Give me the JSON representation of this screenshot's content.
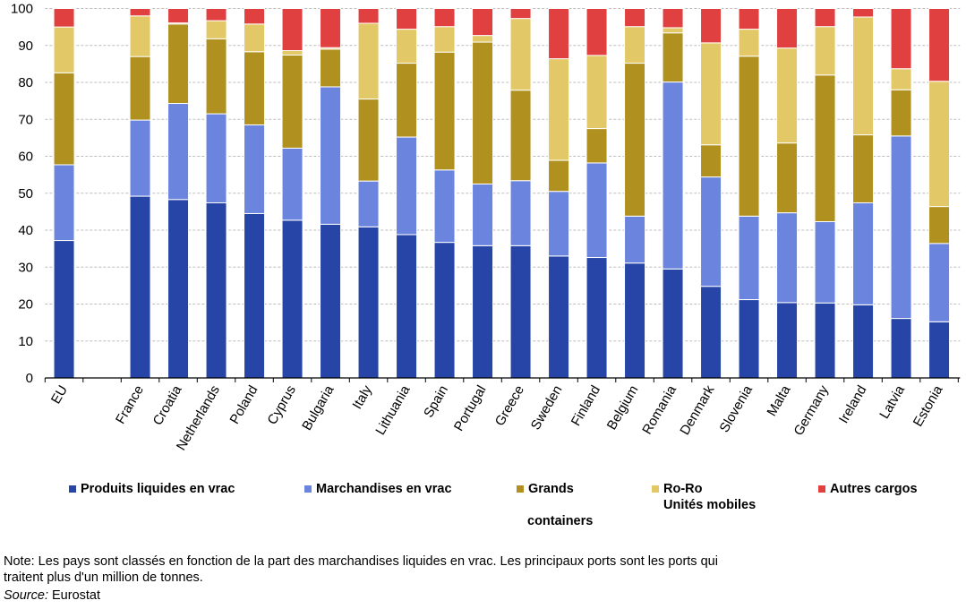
{
  "chart_data": {
    "type": "bar",
    "stacked": true,
    "title": "",
    "xlabel": "",
    "ylabel": "",
    "ylim": [
      0,
      100
    ],
    "yticks": [
      0,
      10,
      20,
      30,
      40,
      50,
      60,
      70,
      80,
      90,
      100
    ],
    "grid": true,
    "legend_position": "bottom",
    "categories": [
      "EU",
      "",
      "France",
      "Croatia",
      "Netherlands",
      "Poland",
      "Cyprus",
      "Bulgaria",
      "Italy",
      "Lithuania",
      "Spain",
      "Portugal",
      "Greece",
      "Sweden",
      "Finland",
      "Belgium",
      "Romania",
      "Denmark",
      "Slovenia",
      "Malta",
      "Germany",
      "Ireland",
      "Latvia",
      "Estonia"
    ],
    "series": [
      {
        "name": "Produits liquides en vrac",
        "color": "#2745A7",
        "values": [
          37.2,
          null,
          49.2,
          48.3,
          47.4,
          44.5,
          42.7,
          41.6,
          40.9,
          38.8,
          36.7,
          35.8,
          35.8,
          33.0,
          32.6,
          31.1,
          29.5,
          24.8,
          21.2,
          20.4,
          20.3,
          19.8,
          16.1,
          15.2
        ]
      },
      {
        "name": "Marchandises en vrac",
        "color": "#6B85DF",
        "values": [
          20.5,
          null,
          20.6,
          26.0,
          24.1,
          24.0,
          19.5,
          37.2,
          12.4,
          26.4,
          19.6,
          16.7,
          17.6,
          17.5,
          25.6,
          12.7,
          50.6,
          29.6,
          22.6,
          24.3,
          22.0,
          27.6,
          49.4,
          21.2
        ]
      },
      {
        "name": "Grands containers",
        "color": "#B0901F",
        "values": [
          24.9,
          null,
          17.2,
          21.5,
          20.3,
          19.8,
          25.2,
          10.2,
          22.2,
          20.0,
          31.9,
          38.4,
          24.5,
          8.4,
          9.3,
          41.4,
          13.3,
          8.7,
          43.3,
          18.9,
          39.7,
          18.4,
          12.5,
          10.0
        ]
      },
      {
        "name": "Ro-Ro Unités mobiles",
        "color": "#E2C866",
        "values": [
          12.4,
          null,
          11.0,
          0.3,
          4.9,
          7.5,
          1.2,
          0.4,
          20.5,
          9.2,
          6.9,
          1.8,
          19.4,
          27.5,
          19.8,
          9.9,
          1.4,
          27.6,
          7.3,
          25.7,
          13.1,
          31.9,
          5.7,
          33.9
        ]
      },
      {
        "name": "Autres cargos",
        "color": "#E04040",
        "values": [
          5.0,
          null,
          2.0,
          3.9,
          3.3,
          4.2,
          11.4,
          10.6,
          4.0,
          5.6,
          4.9,
          7.3,
          2.7,
          13.6,
          12.7,
          4.9,
          5.2,
          9.3,
          5.6,
          10.7,
          4.9,
          2.3,
          16.3,
          19.7
        ]
      }
    ]
  },
  "legend": {
    "items": [
      {
        "label": "Produits liquides en vrac",
        "color": "#2745A7"
      },
      {
        "label": "Marchandises en vrac",
        "color": "#6B85DF"
      },
      {
        "label": "Grands",
        "color": "#B0901F",
        "extra": "containers"
      },
      {
        "label": "Ro-Ro\nUnités mobiles",
        "color": "#E2C866"
      },
      {
        "label": "Autres cargos",
        "color": "#E04040"
      }
    ]
  },
  "footer": {
    "note": "Note: Les pays sont classés en fonction de la part des marchandises liquides en vrac. Les principaux ports sont les ports qui traitent plus d'un million de tonnes.",
    "source_label": "Source:",
    "source_value": " Eurostat"
  }
}
